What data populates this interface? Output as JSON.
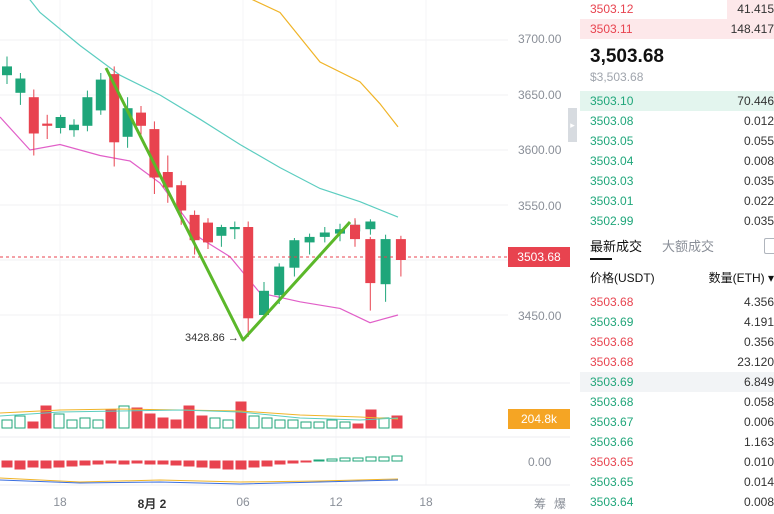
{
  "chart": {
    "price_ticks": [
      "3700.00",
      "3650.00",
      "3600.00",
      "3550.00",
      "3450.00"
    ],
    "current_price_label": "3503.68",
    "low_annotation": "3428.86",
    "volume_label": "204.8k",
    "macd_zero_label": "0.00",
    "time_ticks": [
      "18",
      "8月 2",
      "06",
      "12",
      "18"
    ],
    "corner_icons": [
      "筹",
      "爆"
    ],
    "colors": {
      "up": "#1fa67a",
      "down": "#e8434f",
      "trendline": "#5bb82a",
      "ma_yellow": "#f0b428",
      "ma_cyan": "#5ccdc0",
      "ma_pink": "#e15fc8"
    }
  },
  "orderbook": {
    "asks": [
      {
        "price": "3503.12",
        "qty": "41.415",
        "depth": 0.24
      },
      {
        "price": "3503.11",
        "qty": "148.417",
        "depth": 1.0
      }
    ],
    "last_price": "3,503.68",
    "last_price_sub": "$3,503.68",
    "bids": [
      {
        "price": "3503.10",
        "qty": "70.446",
        "depth": 1.0
      },
      {
        "price": "3503.08",
        "qty": "0.012",
        "depth": 0
      },
      {
        "price": "3503.05",
        "qty": "0.055",
        "depth": 0
      },
      {
        "price": "3503.04",
        "qty": "0.008",
        "depth": 0
      },
      {
        "price": "3503.03",
        "qty": "0.035",
        "depth": 0
      },
      {
        "price": "3503.01",
        "qty": "0.022",
        "depth": 0
      },
      {
        "price": "3502.99",
        "qty": "0.035",
        "depth": 0
      }
    ]
  },
  "trades": {
    "tabs": [
      "最新成交",
      "大额成交"
    ],
    "col_price": "价格(USDT)",
    "col_qty": "数量(ETH)",
    "rows": [
      {
        "price": "3503.68",
        "qty": "4.356",
        "side": "sell"
      },
      {
        "price": "3503.69",
        "qty": "4.191",
        "side": "buy"
      },
      {
        "price": "3503.68",
        "qty": "0.356",
        "side": "sell"
      },
      {
        "price": "3503.68",
        "qty": "23.120",
        "side": "sell"
      },
      {
        "price": "3503.69",
        "qty": "6.849",
        "side": "buy"
      },
      {
        "price": "3503.68",
        "qty": "0.058",
        "side": "buy"
      },
      {
        "price": "3503.67",
        "qty": "0.006",
        "side": "buy"
      },
      {
        "price": "3503.66",
        "qty": "1.163",
        "side": "buy"
      },
      {
        "price": "3503.65",
        "qty": "0.010",
        "side": "sell"
      },
      {
        "price": "3503.65",
        "qty": "0.014",
        "side": "buy"
      },
      {
        "price": "3503.64",
        "qty": "0.008",
        "side": "buy"
      }
    ]
  }
}
